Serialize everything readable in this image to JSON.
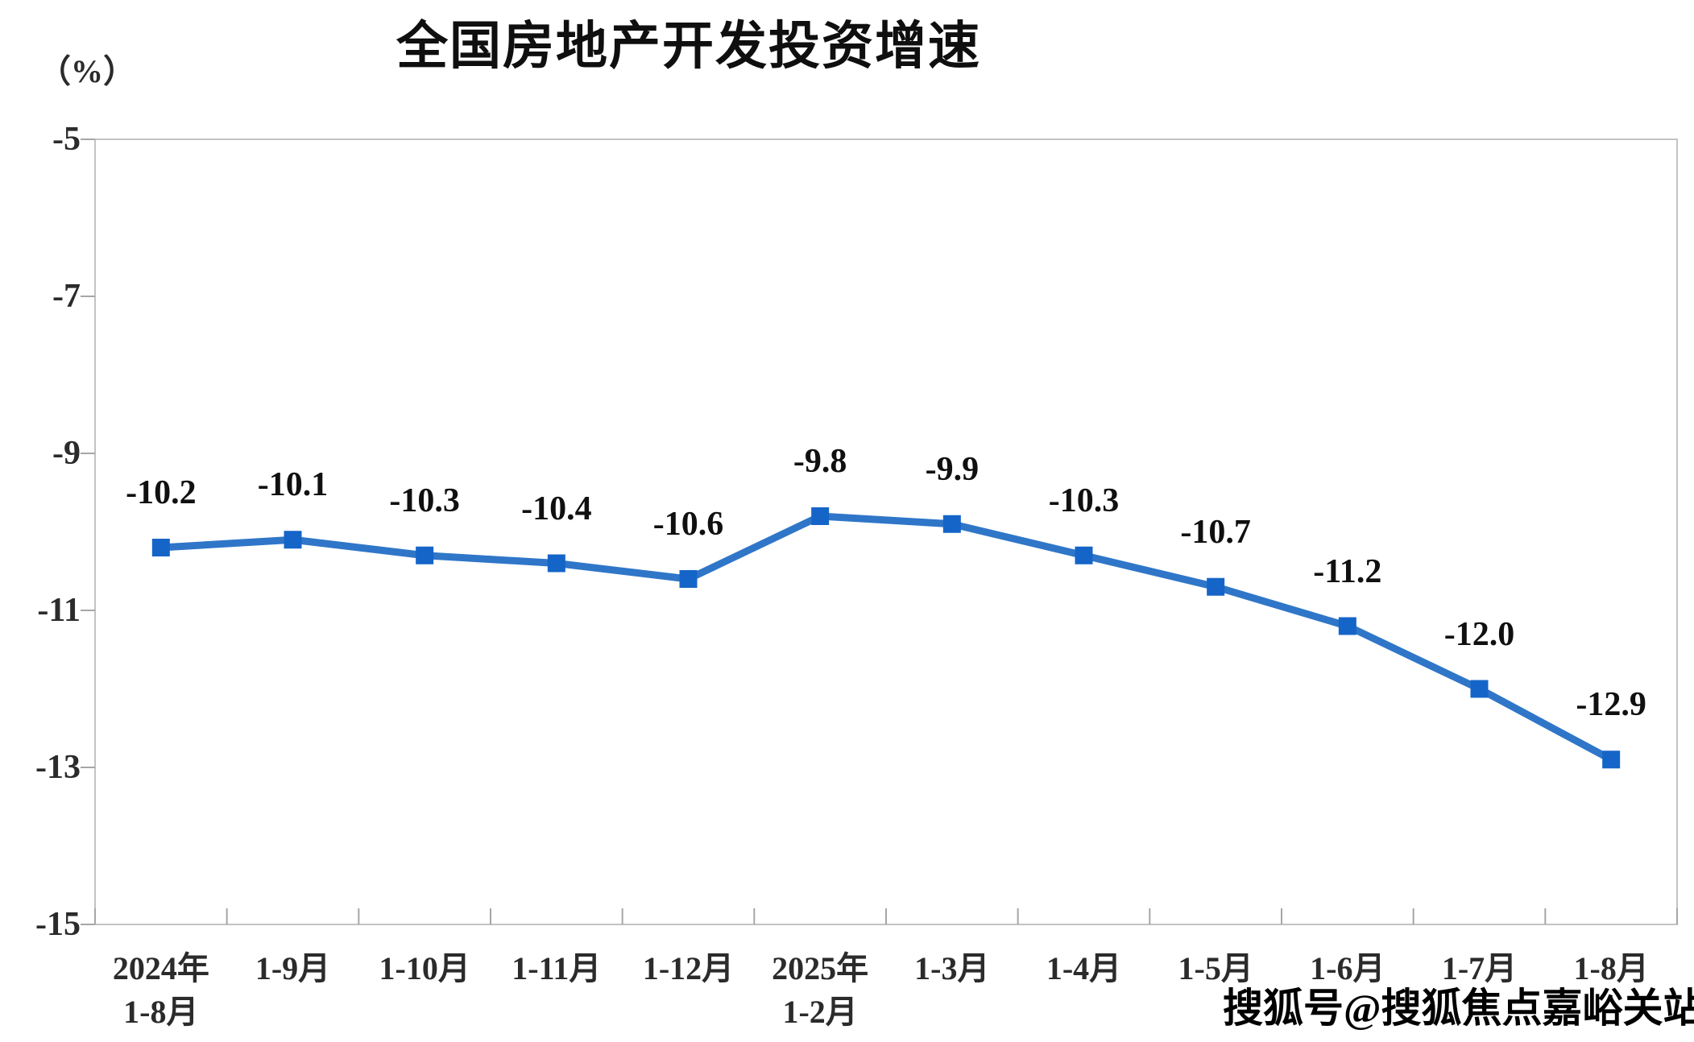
{
  "title": "全国房地产开发投资增速",
  "unit_label": "（%）",
  "watermark": "搜狐号@搜狐焦点嘉峪关站",
  "chart_data": {
    "type": "line",
    "title": "全国房地产开发投资增速",
    "ylabel": "（%）",
    "xlabel": "",
    "categories": [
      [
        "2024年",
        "1-8月"
      ],
      [
        "1-9月"
      ],
      [
        "1-10月"
      ],
      [
        "1-11月"
      ],
      [
        "1-12月"
      ],
      [
        "2025年",
        "1-2月"
      ],
      [
        "1-3月"
      ],
      [
        "1-4月"
      ],
      [
        "1-5月"
      ],
      [
        "1-6月"
      ],
      [
        "1-7月"
      ],
      [
        "1-8月"
      ]
    ],
    "series": [
      {
        "name": "全国房地产开发投资增速",
        "values": [
          -10.2,
          -10.1,
          -10.3,
          -10.4,
          -10.6,
          -9.8,
          -9.9,
          -10.3,
          -10.7,
          -11.2,
          -12.0,
          -12.9
        ]
      }
    ],
    "data_labels": [
      "-10.2",
      "-10.1",
      "-10.3",
      "-10.4",
      "-10.6",
      "-9.8",
      "-9.9",
      "-10.3",
      "-10.7",
      "-11.2",
      "-12.0",
      "-12.9"
    ],
    "ylim": [
      -15,
      -5
    ],
    "yticks": [
      -5,
      -7,
      -9,
      -11,
      -13,
      -15
    ],
    "grid": false,
    "legend_position": "none",
    "marker": "square",
    "colors": {
      "line": "#2f76c8",
      "marker": "#1565c8",
      "plot_border": "#c3c3c3",
      "tick": "#a6a6a6",
      "axis_label": "#2b2b2b",
      "data_label": "#101010",
      "title": "#0f0f0f",
      "watermark": "#000000"
    }
  }
}
